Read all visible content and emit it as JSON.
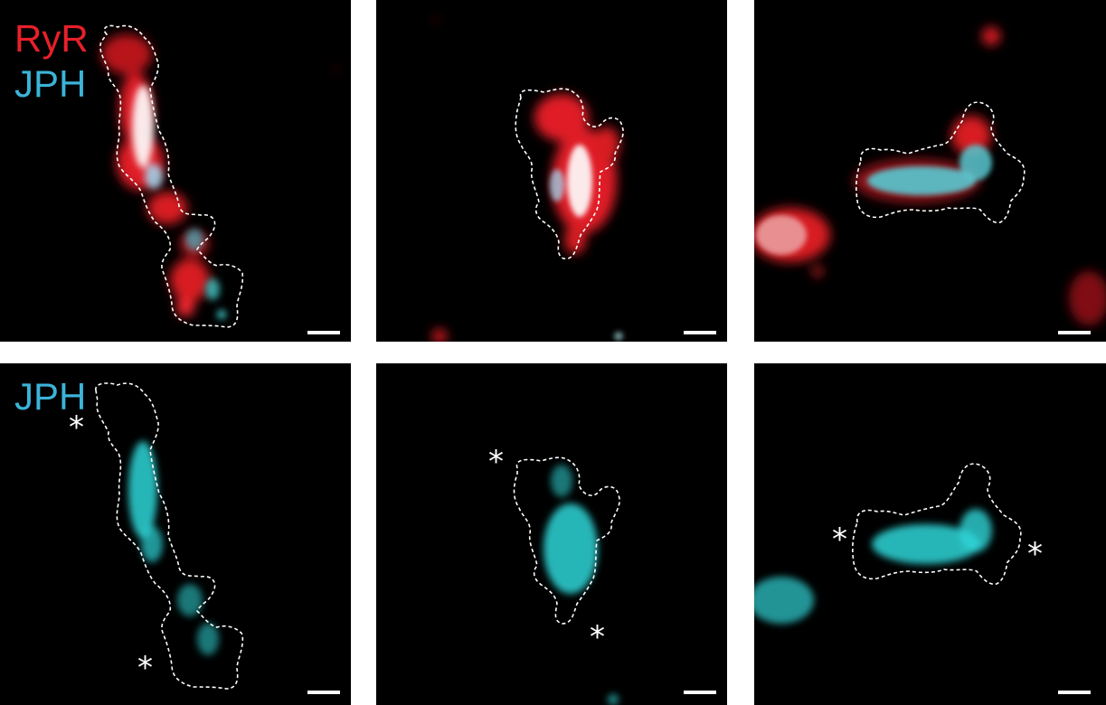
{
  "labels": {
    "ryr": "RyR",
    "jph_top": "JPH",
    "jph_bottom": "JPH",
    "asterisk": "*"
  },
  "colors": {
    "ryr": "#e8202a",
    "jph": "#3bb4d8",
    "jph_signal": "#2fd6d8",
    "background": "#000000",
    "outline": "#ffffff",
    "divider": "#ffffff"
  },
  "panels": [
    {
      "id": "top-left",
      "channels": [
        "RyR",
        "JPH"
      ]
    },
    {
      "id": "top-middle",
      "channels": [
        "RyR",
        "JPH"
      ]
    },
    {
      "id": "top-right",
      "channels": [
        "RyR",
        "JPH"
      ]
    },
    {
      "id": "bottom-left",
      "channels": [
        "JPH"
      ]
    },
    {
      "id": "bottom-middle",
      "channels": [
        "JPH"
      ]
    },
    {
      "id": "bottom-right",
      "channels": [
        "JPH"
      ]
    }
  ]
}
